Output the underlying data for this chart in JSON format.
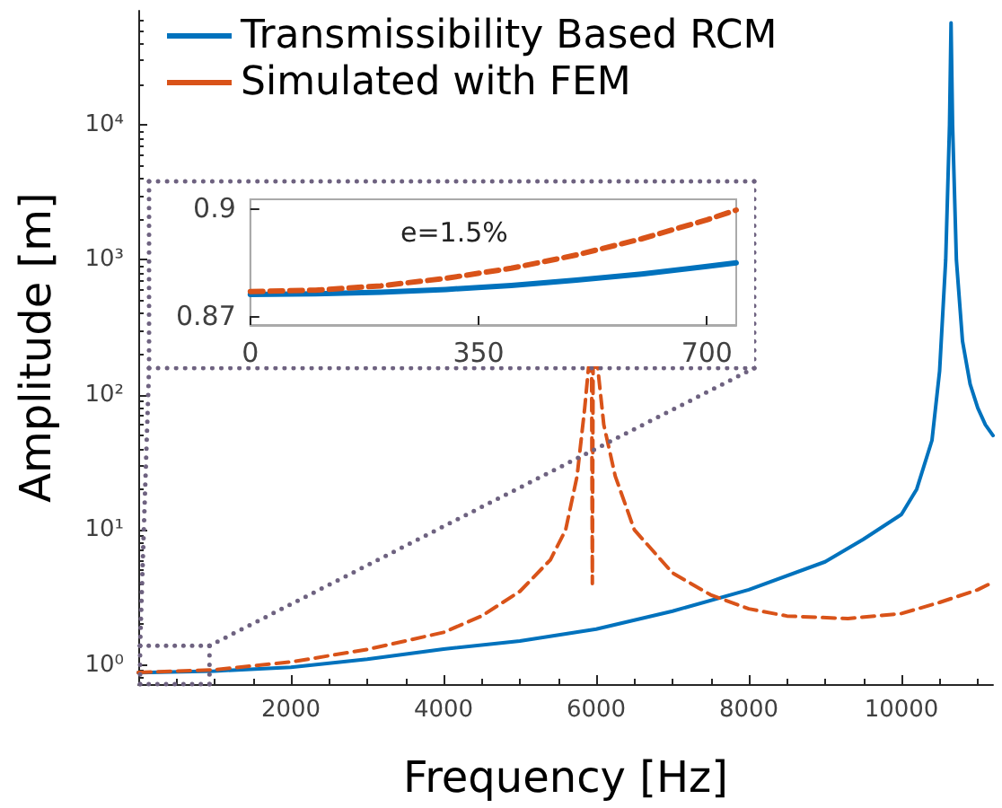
{
  "chart_data": [
    {
      "type": "line",
      "xlabel": "Frequency [Hz]",
      "ylabel": "Amplitude [m]",
      "log": "y",
      "xlim": [
        0,
        11200
      ],
      "xticks": [
        2000,
        4000,
        6000,
        8000,
        10000
      ],
      "ylim": [
        0.72,
        70000
      ],
      "yticks": [
        {
          "value": 1,
          "label": "10⁰"
        },
        {
          "value": 10,
          "label": "10¹"
        },
        {
          "value": 100,
          "label": "10²"
        },
        {
          "value": 1000,
          "label": "10³"
        },
        {
          "value": 10000,
          "label": "10⁴"
        }
      ],
      "legend": "top left",
      "grid": false,
      "series": [
        {
          "name": "Transmissibility Based RCM",
          "color": "#0072bd",
          "line_style": "solid",
          "x": [
            0,
            1000,
            2000,
            3000,
            4000,
            5000,
            6000,
            7000,
            8000,
            9000,
            9500,
            10000,
            10200,
            10400,
            10500,
            10580,
            10630,
            10650,
            10670,
            10720,
            10800,
            10900,
            11000,
            11100,
            11200
          ],
          "values": [
            0.876,
            0.9,
            0.96,
            1.1,
            1.31,
            1.5,
            1.84,
            2.5,
            3.6,
            5.8,
            8.5,
            13,
            20,
            46,
            150,
            1000,
            10000,
            57000,
            10000,
            1000,
            250,
            120,
            80,
            60,
            50
          ]
        },
        {
          "name": "Simulated with FEM",
          "color": "#d95319",
          "line_style": "dashed",
          "x": [
            0,
            1000,
            2000,
            3000,
            4000,
            4500,
            5000,
            5400,
            5600,
            5750,
            5850,
            5900,
            5940,
            5950,
            5960,
            6020,
            6100,
            6250,
            6500,
            7000,
            7500,
            8000,
            8500,
            9300,
            10000,
            10500,
            11000,
            11200
          ],
          "values": [
            0.877,
            0.92,
            1.05,
            1.3,
            1.74,
            2.3,
            3.5,
            6,
            10,
            25,
            80,
            160,
            160,
            4,
            160,
            160,
            60,
            25,
            10,
            4.8,
            3.3,
            2.6,
            2.3,
            2.2,
            2.4,
            2.9,
            3.6,
            4.1
          ]
        }
      ]
    },
    {
      "type": "line",
      "xlim": [
        0,
        745
      ],
      "xticks": [
        0,
        350,
        700
      ],
      "ylim": [
        0.8675,
        0.9025
      ],
      "yticks": [
        0.87,
        0.9
      ],
      "grid": false,
      "annotations": [
        "e=1.5%"
      ],
      "series": [
        {
          "color": "#0072bd",
          "line_style": "solid",
          "x": [
            0,
            100,
            200,
            300,
            400,
            500,
            600,
            700,
            745
          ],
          "values": [
            0.876,
            0.8762,
            0.8766,
            0.8774,
            0.8785,
            0.88,
            0.8817,
            0.8838,
            0.8848
          ]
        },
        {
          "color": "#d95319",
          "line_style": "dashed",
          "x": [
            0,
            100,
            200,
            300,
            400,
            500,
            600,
            700,
            745
          ],
          "values": [
            0.8768,
            0.8772,
            0.8784,
            0.8805,
            0.8833,
            0.887,
            0.8915,
            0.8968,
            0.8995
          ]
        }
      ]
    }
  ]
}
